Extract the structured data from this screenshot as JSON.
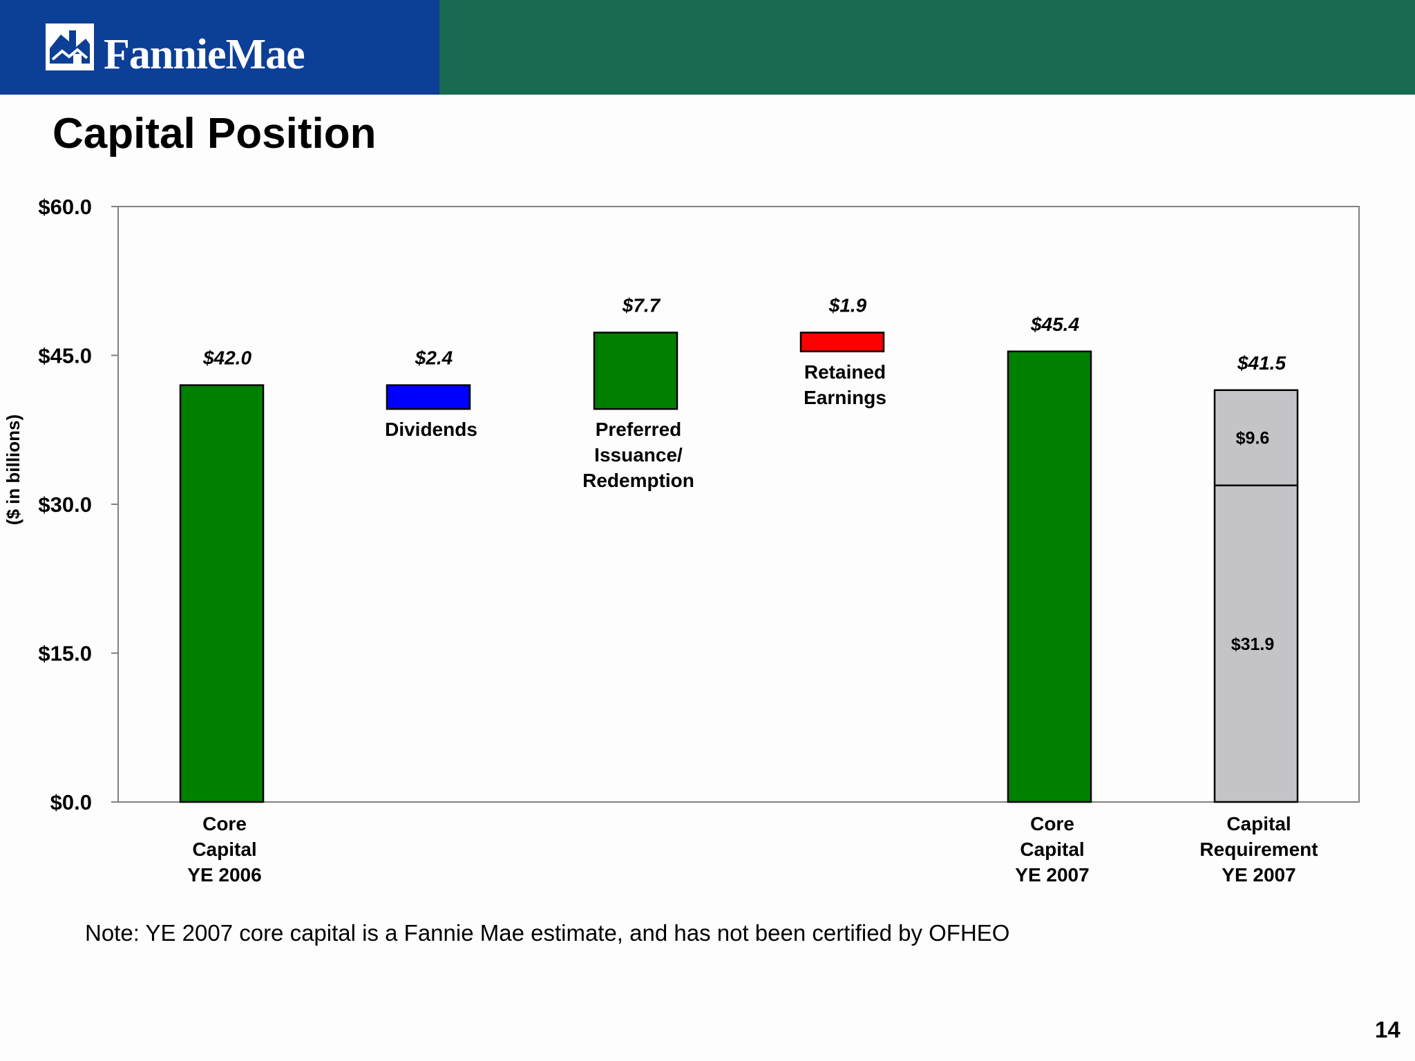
{
  "brand": {
    "name": "FannieMae"
  },
  "page": {
    "title": "Capital Position",
    "number": "14"
  },
  "note": "Note: YE 2007 core capital is a Fannie Mae estimate, and has not been certified by OFHEO",
  "colors": {
    "header_blue": "#0c3f96",
    "header_green": "#17694f",
    "increase": "#008000",
    "dividends": "#0000ff",
    "decrease": "#ff0000",
    "requirement": "#c4c3c8"
  },
  "chart_data": {
    "type": "bar",
    "subtype": "waterfall",
    "title": "",
    "ylabel": "($ in billions)",
    "ylim": [
      0,
      60
    ],
    "yticks": [
      "$0.0",
      "$15.0",
      "$30.0",
      "$45.0",
      "$60.0"
    ],
    "ytick_values": [
      0,
      15,
      30,
      45,
      60
    ],
    "grid": false,
    "legend": "none",
    "bars": [
      {
        "category": "Core Capital YE 2006",
        "label_lines": [
          "Core",
          "Capital",
          "YE 2006"
        ],
        "label_position": "below-axis",
        "bottom": 0,
        "top": 42.0,
        "value_label": "$42.0",
        "color": "#008000"
      },
      {
        "category": "Dividends",
        "label_lines": [
          "Dividends"
        ],
        "label_position": "below-bar",
        "bottom": 39.6,
        "top": 42.0,
        "value_label": "$2.4",
        "color": "#0000ff"
      },
      {
        "category": "Preferred Issuance/ Redemption",
        "label_lines": [
          "Preferred",
          "Issuance/",
          "Redemption"
        ],
        "label_position": "below-bar",
        "bottom": 39.6,
        "top": 47.3,
        "value_label": "$7.7",
        "color": "#008000"
      },
      {
        "category": "Retained Earnings",
        "label_lines": [
          "Retained",
          "Earnings"
        ],
        "label_position": "below-bar",
        "bottom": 45.4,
        "top": 47.3,
        "value_label": "$1.9",
        "color": "#ff0000"
      },
      {
        "category": "Core Capital YE 2007",
        "label_lines": [
          "Core",
          "Capital",
          "YE 2007"
        ],
        "label_position": "below-axis",
        "bottom": 0,
        "top": 45.4,
        "value_label": "$45.4",
        "color": "#008000"
      },
      {
        "category": "Capital Requirement YE 2007",
        "label_lines": [
          "Capital",
          "Requirement",
          "YE 2007"
        ],
        "label_position": "below-axis",
        "bottom": 0,
        "top": 41.5,
        "value_label": "$41.5",
        "color": "#c4c3c8",
        "segments": [
          {
            "value": 31.9,
            "label": "$31.9"
          },
          {
            "value": 9.6,
            "label": "$9.6"
          }
        ]
      }
    ]
  }
}
